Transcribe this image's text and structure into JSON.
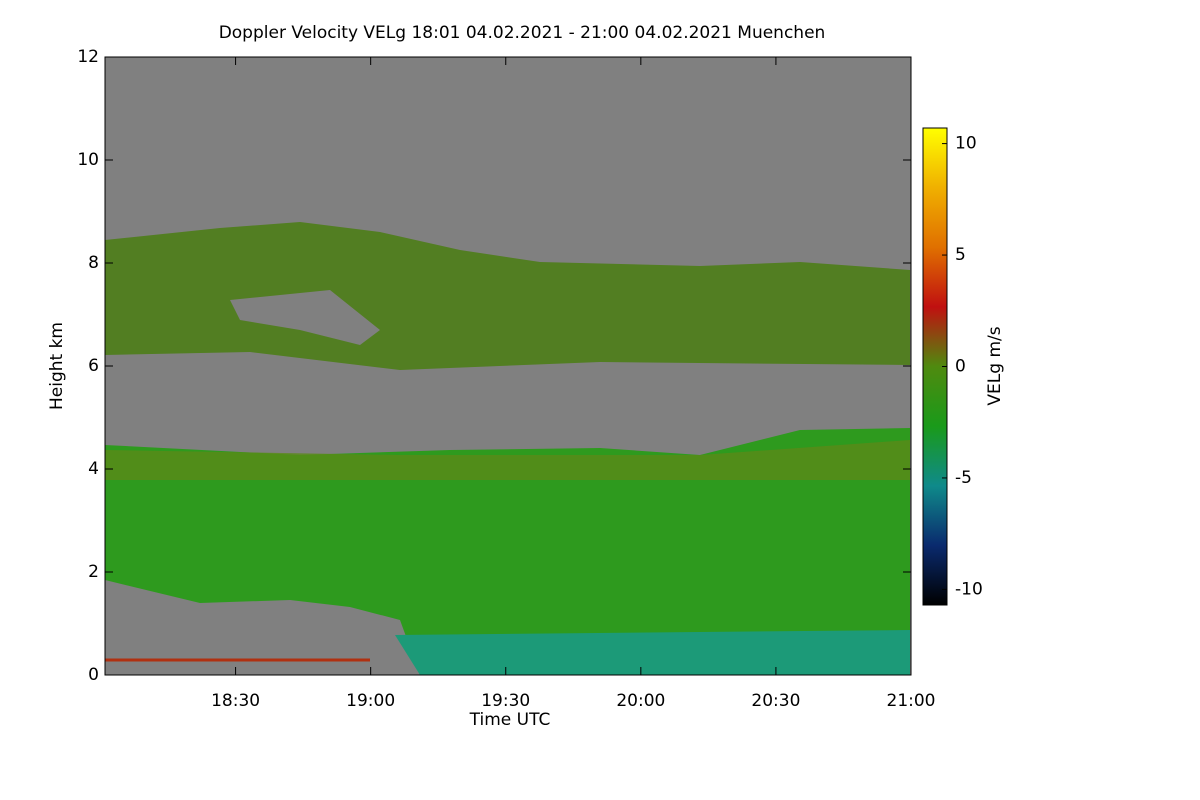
{
  "chart_data": {
    "type": "heatmap",
    "title": "Doppler Velocity VELg   18:01 04.02.2021 - 21:00 04.02.2021 Muenchen",
    "xlabel": "Time UTC",
    "ylabel": "Height km",
    "xlim": [
      1081,
      1260
    ],
    "xticks": [
      {
        "value": 1110,
        "label": "18:30"
      },
      {
        "value": 1140,
        "label": "19:00"
      },
      {
        "value": 1170,
        "label": "19:30"
      },
      {
        "value": 1200,
        "label": "20:00"
      },
      {
        "value": 1230,
        "label": "20:30"
      },
      {
        "value": 1260,
        "label": "21:00"
      }
    ],
    "ylim": [
      0,
      12
    ],
    "yticks": [
      0,
      2,
      4,
      6,
      8,
      10,
      12
    ],
    "colorbar_label": "VELg m/s",
    "clim": [
      -10.7,
      10.7
    ],
    "cticks": [
      -10,
      -5,
      0,
      5,
      10
    ],
    "colormap": [
      "#000000",
      "#0a2a6e",
      "#0f8a8a",
      "#1a9a1a",
      "#4f8a0f",
      "#c01010",
      "#e07000",
      "#f0b000",
      "#ffff00"
    ],
    "background_color": "#808080"
  }
}
